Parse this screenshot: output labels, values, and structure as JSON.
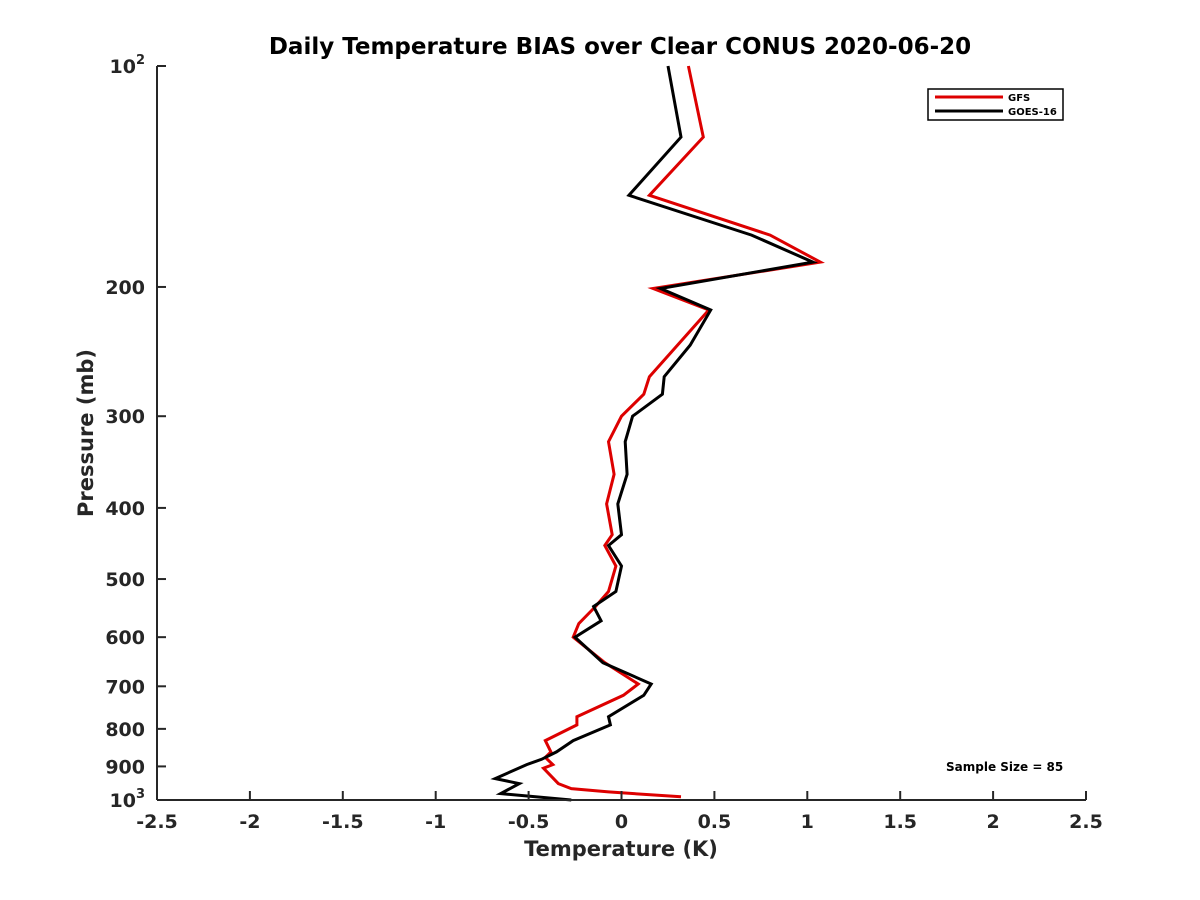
{
  "chart_data": {
    "type": "line",
    "title": "Daily Temperature BIAS over Clear CONUS 2020-06-20",
    "xlabel": "Temperature (K)",
    "ylabel": "Pressure (mb)",
    "xlim": [
      -2.5,
      2.5
    ],
    "ylim": [
      100,
      1000
    ],
    "y_scale": "log",
    "y_reversed": true,
    "x_ticks": [
      -2.5,
      -2,
      -1.5,
      -1,
      -0.5,
      0,
      0.5,
      1,
      1.5,
      2,
      2.5
    ],
    "x_tick_labels": [
      "-2.5",
      "-2",
      "-1.5",
      "-1",
      "-0.5",
      "0",
      "0.5",
      "1",
      "1.5",
      "2",
      "2.5"
    ],
    "y_ticks": [
      100,
      200,
      300,
      400,
      500,
      600,
      700,
      800,
      900,
      1000
    ],
    "y_tick_labels": [
      {
        "base": "10",
        "sup": "2"
      },
      {
        "base": "200",
        "sup": ""
      },
      {
        "base": "300",
        "sup": ""
      },
      {
        "base": "400",
        "sup": ""
      },
      {
        "base": "500",
        "sup": ""
      },
      {
        "base": "600",
        "sup": ""
      },
      {
        "base": "700",
        "sup": ""
      },
      {
        "base": "800",
        "sup": ""
      },
      {
        "base": "900",
        "sup": ""
      },
      {
        "base": "10",
        "sup": "3"
      }
    ],
    "grid": false,
    "legend_position": "top-right",
    "series": [
      {
        "name": "GFS",
        "color": "#dd0000",
        "points": [
          [
            0.36,
            100
          ],
          [
            0.44,
            125
          ],
          [
            0.15,
            150
          ],
          [
            0.8,
            170
          ],
          [
            1.07,
            185
          ],
          [
            0.17,
            201
          ],
          [
            0.47,
            215
          ],
          [
            0.15,
            265
          ],
          [
            0.12,
            280
          ],
          [
            0.0,
            300
          ],
          [
            -0.07,
            325
          ],
          [
            -0.04,
            360
          ],
          [
            -0.08,
            395
          ],
          [
            -0.05,
            435
          ],
          [
            -0.09,
            450
          ],
          [
            -0.03,
            480
          ],
          [
            -0.07,
            520
          ],
          [
            -0.14,
            545
          ],
          [
            -0.23,
            575
          ],
          [
            -0.26,
            600
          ],
          [
            -0.09,
            650
          ],
          [
            0.09,
            695
          ],
          [
            0.01,
            720
          ],
          [
            -0.24,
            770
          ],
          [
            -0.24,
            790
          ],
          [
            -0.41,
            830
          ],
          [
            -0.38,
            860
          ],
          [
            -0.41,
            875
          ],
          [
            -0.37,
            895
          ],
          [
            -0.42,
            905
          ],
          [
            -0.34,
            950
          ],
          [
            -0.27,
            965
          ],
          [
            -0.07,
            975
          ],
          [
            0.32,
            990
          ]
        ]
      },
      {
        "name": "GOES-16",
        "color": "#000000",
        "points": [
          [
            0.25,
            100
          ],
          [
            0.32,
            125
          ],
          [
            0.04,
            150
          ],
          [
            0.7,
            170
          ],
          [
            1.03,
            185
          ],
          [
            0.21,
            201
          ],
          [
            0.48,
            215
          ],
          [
            0.37,
            240
          ],
          [
            0.23,
            265
          ],
          [
            0.22,
            280
          ],
          [
            0.06,
            300
          ],
          [
            0.02,
            325
          ],
          [
            0.03,
            360
          ],
          [
            -0.02,
            395
          ],
          [
            0.0,
            435
          ],
          [
            -0.07,
            450
          ],
          [
            0.0,
            480
          ],
          [
            -0.03,
            520
          ],
          [
            -0.15,
            545
          ],
          [
            -0.11,
            570
          ],
          [
            -0.25,
            600
          ],
          [
            -0.1,
            650
          ],
          [
            0.16,
            695
          ],
          [
            0.12,
            720
          ],
          [
            -0.07,
            770
          ],
          [
            -0.06,
            790
          ],
          [
            -0.26,
            830
          ],
          [
            -0.35,
            860
          ],
          [
            -0.43,
            880
          ],
          [
            -0.51,
            895
          ],
          [
            -0.68,
            935
          ],
          [
            -0.55,
            950
          ],
          [
            -0.65,
            980
          ],
          [
            -0.27,
            1000
          ]
        ]
      }
    ],
    "annotation": "Sample Size = 85"
  }
}
